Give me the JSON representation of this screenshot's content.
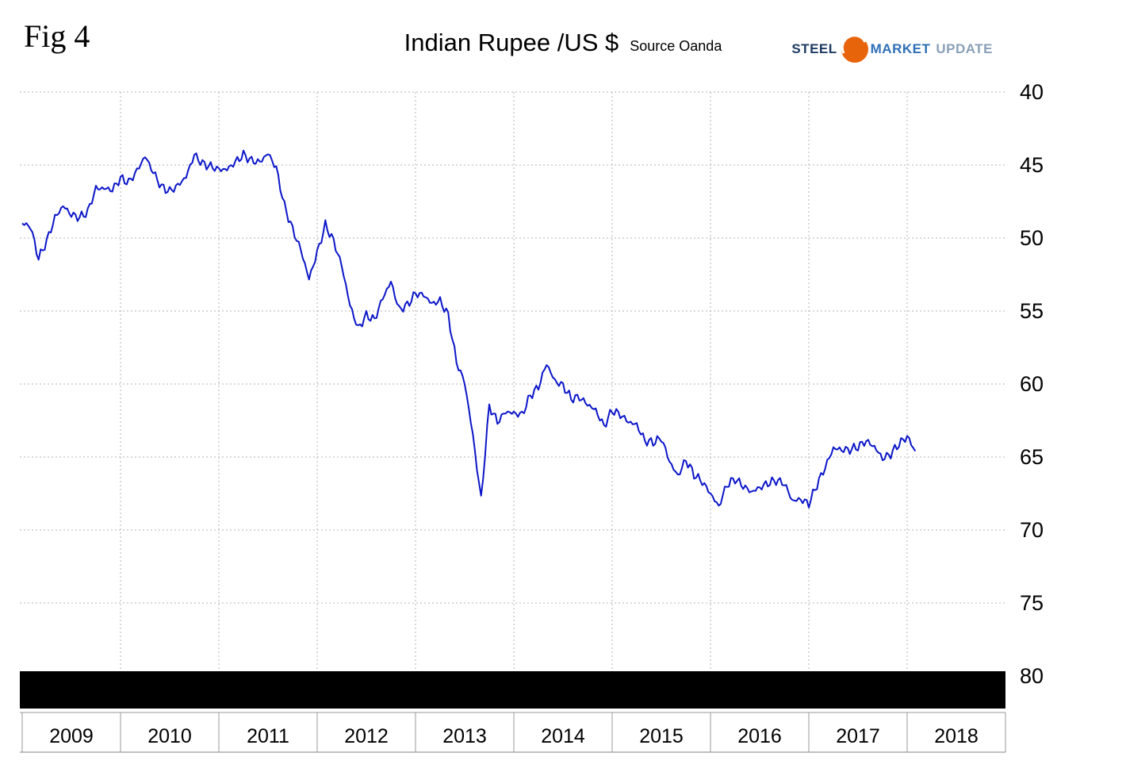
{
  "figure_label": "Fig 4",
  "title": "Indian Rupee /US $",
  "source": "Source Oanda",
  "logo": {
    "steel": "STEEL",
    "market": "MARKET",
    "update": "UPDATE",
    "orange": "#e8640a",
    "navy": "#1f3a63",
    "blue": "#2f6fb7",
    "light_blue": "#8aa0b8"
  },
  "chart_data": {
    "type": "line",
    "title": "Indian Rupee /US $",
    "source": "Source Oanda",
    "grid": "dotted",
    "grid_color": "#b3b3b3",
    "x_axis": {
      "tick_labels": [
        "2009",
        "2010",
        "2011",
        "2012",
        "2013",
        "2014",
        "2015",
        "2016",
        "2017",
        "2018"
      ],
      "range": [
        2009,
        2019
      ]
    },
    "y_axis": {
      "ticks": [
        40,
        45,
        50,
        55,
        60,
        65,
        70,
        75,
        80
      ],
      "min": 40,
      "max": 80,
      "inverted": true,
      "side": "right"
    },
    "series": [
      {
        "name": "INR per USD",
        "color": "#0b16c8",
        "x_start_year": 2009,
        "x_step": "1 month",
        "values": [
          49.0,
          49.2,
          51.4,
          50.2,
          48.6,
          47.8,
          48.4,
          48.6,
          48.2,
          46.6,
          46.6,
          46.7,
          45.9,
          46.2,
          45.4,
          44.4,
          45.5,
          46.5,
          46.8,
          46.4,
          45.8,
          44.3,
          44.9,
          45.1,
          45.3,
          45.3,
          44.8,
          44.3,
          44.7,
          44.8,
          44.2,
          45.2,
          47.8,
          49.4,
          50.8,
          52.8,
          51.0,
          49.1,
          50.2,
          51.9,
          54.6,
          56.2,
          55.3,
          55.6,
          54.1,
          53.0,
          54.9,
          54.6,
          53.8,
          53.9,
          54.5,
          54.3,
          55.3,
          58.5,
          59.9,
          63.5,
          67.9,
          61.5,
          62.6,
          61.9,
          62.0,
          62.1,
          60.8,
          60.2,
          58.6,
          59.8,
          60.1,
          61.0,
          60.9,
          61.4,
          61.8,
          62.9,
          61.8,
          62.1,
          62.6,
          62.8,
          63.9,
          64.0,
          63.7,
          65.3,
          66.3,
          65.2,
          66.2,
          66.7,
          67.5,
          68.4,
          66.9,
          66.5,
          67.0,
          67.4,
          67.1,
          66.8,
          66.6,
          66.8,
          68.0,
          67.9,
          68.2,
          66.9,
          65.7,
          64.4,
          64.5,
          64.5,
          64.3,
          63.9,
          64.3,
          65.1,
          64.8,
          64.1,
          63.6,
          64.6
        ]
      }
    ],
    "annotations": [
      {
        "type": "blackout-bar",
        "at_value": 80,
        "color": "#000000"
      }
    ]
  }
}
